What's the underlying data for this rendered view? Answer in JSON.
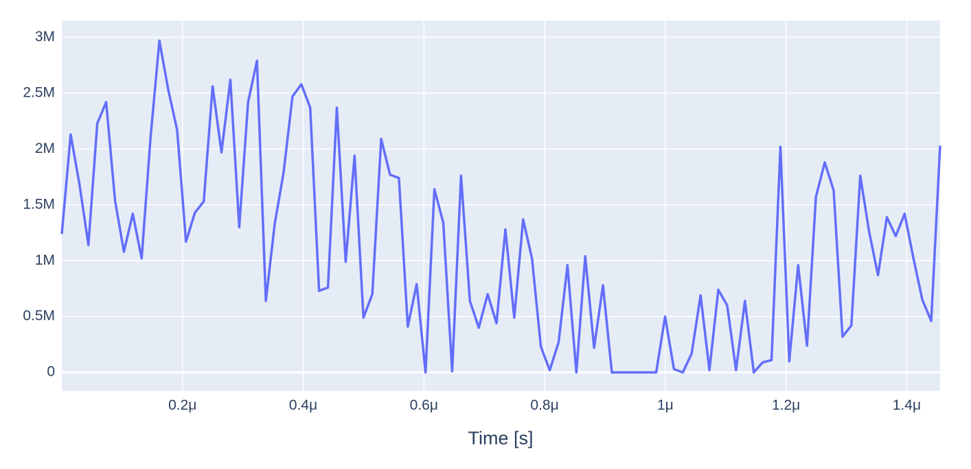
{
  "chart_data": {
    "type": "line",
    "x_label": "Time [s]",
    "x": [
      0,
      1.47e-08,
      2.94e-08,
      4.41e-08,
      5.88e-08,
      7.35e-08,
      8.82e-08,
      1.029e-07,
      1.176e-07,
      1.323e-07,
      1.47e-07,
      1.617e-07,
      1.764e-07,
      1.911e-07,
      2.058e-07,
      2.205e-07,
      2.352e-07,
      2.499e-07,
      2.646e-07,
      2.793e-07,
      2.94e-07,
      3.087e-07,
      3.234e-07,
      3.381e-07,
      3.528e-07,
      3.675e-07,
      3.822e-07,
      3.969e-07,
      4.116e-07,
      4.263e-07,
      4.41e-07,
      4.557e-07,
      4.704e-07,
      4.851e-07,
      4.998e-07,
      5.145e-07,
      5.292e-07,
      5.439e-07,
      5.586e-07,
      5.733e-07,
      5.88e-07,
      6.027e-07,
      6.174e-07,
      6.321e-07,
      6.468e-07,
      6.615e-07,
      6.762e-07,
      6.909e-07,
      7.056e-07,
      7.203e-07,
      7.35e-07,
      7.497e-07,
      7.644e-07,
      7.791e-07,
      7.938e-07,
      8.085e-07,
      8.232e-07,
      8.379e-07,
      8.526e-07,
      8.673e-07,
      8.82e-07,
      8.967e-07,
      9.114e-07,
      9.261e-07,
      9.408e-07,
      9.555e-07,
      9.702e-07,
      9.849e-07,
      9.996e-07,
      1.0143e-06,
      1.029e-06,
      1.0437e-06,
      1.0584e-06,
      1.0731e-06,
      1.0878e-06,
      1.1025e-06,
      1.1172e-06,
      1.1319e-06,
      1.1466e-06,
      1.1613e-06,
      1.176e-06,
      1.1907e-06,
      1.2054e-06,
      1.2201e-06,
      1.2348e-06,
      1.2495e-06,
      1.2642e-06,
      1.2789e-06,
      1.2936e-06,
      1.3083e-06,
      1.323e-06,
      1.3377e-06,
      1.3524e-06,
      1.3671e-06,
      1.3818e-06,
      1.3965e-06,
      1.4112e-06,
      1.4259e-06,
      1.4406e-06,
      1.4553e-06
    ],
    "series": [
      {
        "color": "#636efa",
        "values": [
          1240000,
          2130000,
          1680000,
          1140000,
          2230000,
          2420000,
          1540000,
          1080000,
          1420000,
          1020000,
          2100000,
          2970000,
          2530000,
          2170000,
          1170000,
          1430000,
          1530000,
          2560000,
          1970000,
          2620000,
          1300000,
          2420000,
          2790000,
          640000,
          1330000,
          1790000,
          2470000,
          2580000,
          2370000,
          730000,
          760000,
          2370000,
          990000,
          1940000,
          490000,
          700000,
          2090000,
          1770000,
          1740000,
          410000,
          790000,
          0,
          1640000,
          1340000,
          10000,
          1760000,
          640000,
          400000,
          700000,
          440000,
          1280000,
          490000,
          1370000,
          1020000,
          230000,
          20000,
          270000,
          960000,
          0,
          1040000,
          220000,
          780000,
          0,
          0,
          0,
          0,
          0,
          0,
          500000,
          30000,
          0,
          170000,
          690000,
          20000,
          740000,
          600000,
          20000,
          640000,
          0,
          90000,
          110000,
          2020000,
          100000,
          960000,
          240000,
          1570000,
          1880000,
          1630000,
          320000,
          420000,
          1760000,
          1260000,
          870000,
          1390000,
          1220000,
          1420000,
          1020000,
          650000,
          460000,
          2030000
        ]
      }
    ],
    "xlim": [
      0,
      1.4553e-06
    ],
    "ylim": [
      -165000,
      3150000
    ],
    "xticks": [
      {
        "value": 2e-07,
        "label": "0.2μ"
      },
      {
        "value": 4e-07,
        "label": "0.4μ"
      },
      {
        "value": 6e-07,
        "label": "0.6μ"
      },
      {
        "value": 8e-07,
        "label": "0.8μ"
      },
      {
        "value": 1e-06,
        "label": "1μ"
      },
      {
        "value": 1.2e-06,
        "label": "1.2μ"
      },
      {
        "value": 1.4e-06,
        "label": "1.4μ"
      }
    ],
    "yticks": [
      0,
      {
        "value": 500000,
        "label": "0.5M"
      },
      {
        "value": 1000000,
        "label": "1M"
      },
      {
        "value": 1500000,
        "label": "1.5M"
      },
      {
        "value": 2000000,
        "label": "2M"
      },
      {
        "value": 2500000,
        "label": "2.5M"
      },
      {
        "value": 3000000,
        "label": "3M"
      }
    ],
    "grid": true
  }
}
